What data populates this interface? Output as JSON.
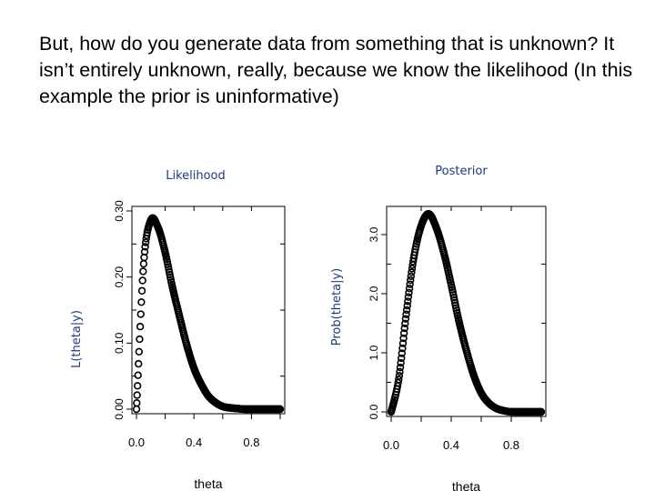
{
  "slide": {
    "text": "But, how do you generate data from something that is unknown? It isn’t entirely unknown, really, because we know the likelihood (In this example the prior is uninformative)"
  },
  "chart_data": [
    {
      "type": "scatter",
      "title": "Likelihood",
      "xlabel": "theta",
      "ylabel": "L(theta|y)",
      "xlim": [
        0,
        1
      ],
      "ylim": [
        0,
        0.3
      ],
      "xticks": [
        "0.0",
        "0.4",
        "0.8"
      ],
      "yticks": [
        "0.00",
        "0.10",
        "0.20",
        "0.30"
      ],
      "ytick_values": [
        0,
        0.1,
        0.2,
        0.3
      ],
      "xtick_values": [
        0,
        0.4,
        0.8
      ],
      "series": [
        {
          "x": [
            0.0,
            0.05,
            0.1,
            0.15,
            0.2,
            0.25,
            0.3,
            0.35,
            0.4,
            0.45,
            0.5,
            0.55,
            0.6,
            0.65,
            0.7,
            0.75,
            0.8,
            0.85,
            0.9,
            0.95,
            1.0
          ],
          "values": [
            0.0,
            0.22,
            0.286,
            0.275,
            0.237,
            0.185,
            0.14,
            0.097,
            0.062,
            0.038,
            0.02,
            0.01,
            0.004,
            0.002,
            0.001,
            0.0,
            0.0,
            0.0,
            0.0,
            0.0,
            0.0
          ]
        }
      ],
      "grid": false
    },
    {
      "type": "scatter",
      "title": "Posterior",
      "xlabel": "theta",
      "ylabel": "Prob(theta|y)",
      "xlim": [
        0,
        1
      ],
      "ylim": [
        0,
        3.4
      ],
      "xticks": [
        "0.0",
        "0.4",
        "0.8"
      ],
      "yticks": [
        "0.0",
        "1.0",
        "2.0",
        "3.0"
      ],
      "ytick_values": [
        0,
        1,
        2,
        3
      ],
      "xtick_values": [
        0,
        0.4,
        0.8
      ],
      "series": [
        {
          "x": [
            0.0,
            0.05,
            0.1,
            0.15,
            0.2,
            0.25,
            0.3,
            0.35,
            0.4,
            0.45,
            0.5,
            0.55,
            0.6,
            0.65,
            0.7,
            0.75,
            0.8,
            0.85,
            0.9,
            0.95,
            1.0
          ],
          "values": [
            0.0,
            0.55,
            1.65,
            2.6,
            3.15,
            3.35,
            3.12,
            2.7,
            2.15,
            1.55,
            1.05,
            0.62,
            0.32,
            0.15,
            0.06,
            0.02,
            0.0,
            0.0,
            0.0,
            0.0,
            0.0
          ]
        }
      ],
      "grid": false
    }
  ]
}
